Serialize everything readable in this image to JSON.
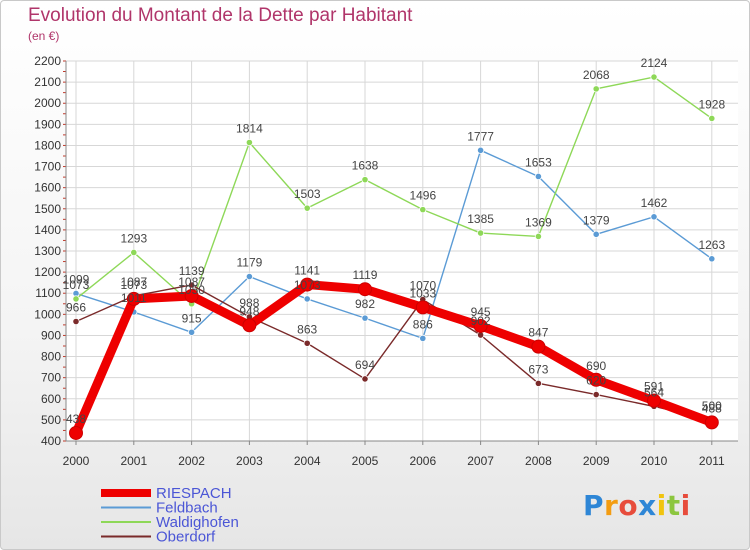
{
  "title": "Evolution du Montant de la Dette par Habitant",
  "subtitle": "(en €)",
  "logo_text": "Proxiti",
  "chart_data": {
    "type": "line",
    "title": "Evolution du Montant de la Dette par Habitant",
    "subtitle": "(en €)",
    "x": [
      "2000",
      "2001",
      "2002",
      "2003",
      "2004",
      "2005",
      "2006",
      "2007",
      "2008",
      "2009",
      "2010",
      "2011"
    ],
    "ylim": [
      400,
      2200
    ],
    "yticks": [
      400,
      500,
      600,
      700,
      800,
      900,
      1000,
      1100,
      1200,
      1300,
      1400,
      1500,
      1600,
      1700,
      1800,
      1900,
      2000,
      2100,
      2200
    ],
    "grid": true,
    "legend_position": "bottom-left",
    "series": [
      {
        "name": "RIESPACH",
        "color": "#ee0000",
        "values": [
          438,
          1073,
          1087,
          948,
          1141,
          1119,
          1033,
          945,
          847,
          690,
          591,
          488
        ]
      },
      {
        "name": "Feldbach",
        "color": "#5b9bd5",
        "values": [
          1099,
          1011,
          915,
          1179,
          1073,
          982,
          886,
          1777,
          1653,
          1379,
          1462,
          1263
        ]
      },
      {
        "name": "Waldighofen",
        "color": "#8ed858",
        "values": [
          1073,
          1293,
          1050,
          1814,
          1503,
          1638,
          1496,
          1385,
          1369,
          2068,
          2124,
          1928
        ]
      },
      {
        "name": "Oberdorf",
        "color": "#7a2a2a",
        "values": [
          966,
          1087,
          1139,
          988,
          863,
          694,
          1070,
          902,
          673,
          620,
          564,
          500
        ]
      }
    ]
  }
}
